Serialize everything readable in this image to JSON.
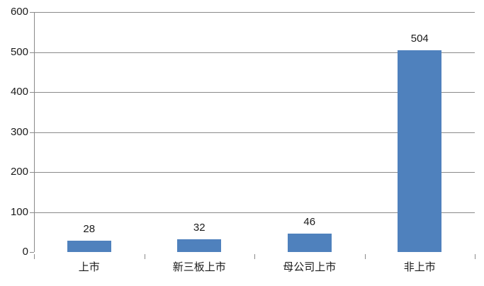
{
  "chart_data": {
    "type": "bar",
    "title": "",
    "xlabel": "",
    "ylabel": "",
    "categories": [
      "上市",
      "新三板上市",
      "母公司上市",
      "非上市"
    ],
    "values": [
      28,
      32,
      46,
      504
    ],
    "data_labels": [
      "28",
      "32",
      "46",
      "504"
    ],
    "ylim": [
      0,
      600
    ],
    "yticks": [
      0,
      100,
      200,
      300,
      400,
      500,
      600
    ],
    "ytick_labels": [
      "0",
      "100",
      "200",
      "300",
      "400",
      "500",
      "600"
    ],
    "grid": true,
    "legend": false,
    "colors": {
      "bar_fill": "#4F81BD",
      "gridline": "#8a8a8a",
      "axis": "#8a8a8a",
      "text": "#1a1a1a",
      "background": "#ffffff"
    }
  }
}
